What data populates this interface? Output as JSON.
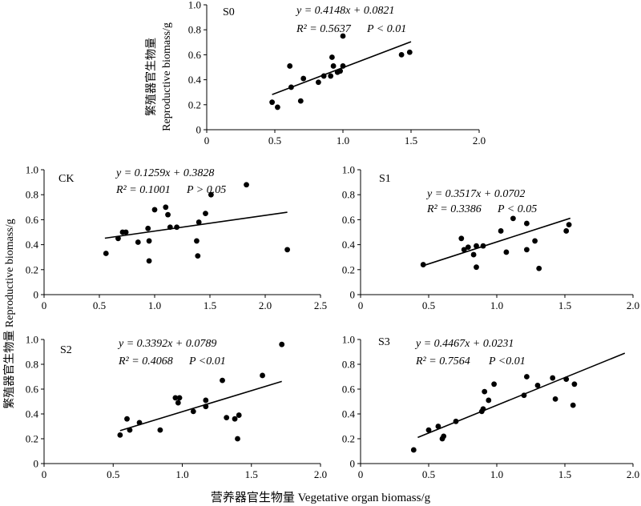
{
  "figure": {
    "ylabel_main": "繁殖器官生物量 Reproductive biomass/g",
    "ylabel_s0_line1": "繁殖器官生物量",
    "ylabel_s0_line2": "Reproductive biomass/g",
    "xlabel": "营养器官生物量 Vegetative organ biomass/g"
  },
  "chart_data": [
    {
      "id": "S0",
      "type": "scatter",
      "label": "S0",
      "equation": "y = 0.4148x + 0.0821",
      "r2": "R² = 0.5637",
      "p": "P < 0.01",
      "slope": 0.4148,
      "intercept": 0.0821,
      "fit_range": [
        0.48,
        1.5
      ],
      "xlim": [
        0,
        2.0
      ],
      "ylim": [
        0,
        1.0
      ],
      "xticks": [
        0,
        0.5,
        1.0,
        1.5,
        2.0
      ],
      "xtick_labels": [
        "0",
        "0.5",
        "1.0",
        "1.5",
        "2.0"
      ],
      "yticks": [
        0,
        0.2,
        0.4,
        0.6,
        0.8,
        1.0
      ],
      "ytick_labels": [
        "0",
        "0.2",
        "0.4",
        "0.6",
        "0.8",
        "1.0"
      ],
      "points": [
        [
          0.48,
          0.22
        ],
        [
          0.52,
          0.18
        ],
        [
          0.61,
          0.51
        ],
        [
          0.62,
          0.34
        ],
        [
          0.69,
          0.23
        ],
        [
          0.71,
          0.41
        ],
        [
          0.82,
          0.38
        ],
        [
          0.86,
          0.43
        ],
        [
          0.91,
          0.43
        ],
        [
          0.92,
          0.58
        ],
        [
          0.93,
          0.51
        ],
        [
          0.96,
          0.46
        ],
        [
          0.98,
          0.47
        ],
        [
          1.0,
          0.51
        ],
        [
          1.0,
          0.75
        ],
        [
          1.43,
          0.6
        ],
        [
          1.49,
          0.62
        ]
      ]
    },
    {
      "id": "CK",
      "type": "scatter",
      "label": "CK",
      "equation": "y = 0.1259x + 0.3828",
      "r2": "R² = 0.1001",
      "p": "P > 0.05",
      "slope": 0.1259,
      "intercept": 0.3828,
      "fit_range": [
        0.55,
        2.2
      ],
      "xlim": [
        0,
        2.5
      ],
      "ylim": [
        0,
        1.0
      ],
      "xticks": [
        0,
        0.5,
        1.0,
        1.5,
        2.0,
        2.5
      ],
      "xtick_labels": [
        "0",
        "0.5",
        "1.0",
        "1.5",
        "2.0",
        "2.5"
      ],
      "yticks": [
        0,
        0.2,
        0.4,
        0.6,
        0.8,
        1.0
      ],
      "ytick_labels": [
        "0",
        "0.2",
        "0.4",
        "0.6",
        "0.8",
        "1.0"
      ],
      "points": [
        [
          0.56,
          0.33
        ],
        [
          0.67,
          0.45
        ],
        [
          0.71,
          0.5
        ],
        [
          0.74,
          0.5
        ],
        [
          0.85,
          0.42
        ],
        [
          0.94,
          0.53
        ],
        [
          0.95,
          0.27
        ],
        [
          0.95,
          0.43
        ],
        [
          1.0,
          0.68
        ],
        [
          1.1,
          0.7
        ],
        [
          1.12,
          0.64
        ],
        [
          1.14,
          0.54
        ],
        [
          1.2,
          0.54
        ],
        [
          1.38,
          0.43
        ],
        [
          1.39,
          0.31
        ],
        [
          1.4,
          0.58
        ],
        [
          1.46,
          0.65
        ],
        [
          1.51,
          0.8
        ],
        [
          1.83,
          0.88
        ],
        [
          2.2,
          0.36
        ]
      ]
    },
    {
      "id": "S1",
      "type": "scatter",
      "label": "S1",
      "equation": "y = 0.3517x + 0.0702",
      "r2": "R² = 0.3386",
      "p": "P < 0.05",
      "slope": 0.3517,
      "intercept": 0.0702,
      "fit_range": [
        0.46,
        1.54
      ],
      "xlim": [
        0,
        2.0
      ],
      "ylim": [
        0,
        1.0
      ],
      "xticks": [
        0,
        0.5,
        1.0,
        1.5,
        2.0
      ],
      "xtick_labels": [
        "0",
        "0.5",
        "1.0",
        "1.5",
        "2.0"
      ],
      "yticks": [
        0,
        0.2,
        0.4,
        0.6,
        0.8,
        1.0
      ],
      "ytick_labels": [
        "0",
        "0.2",
        "0.4",
        "0.6",
        "0.8",
        "1.0"
      ],
      "points": [
        [
          0.46,
          0.24
        ],
        [
          0.74,
          0.45
        ],
        [
          0.76,
          0.36
        ],
        [
          0.79,
          0.38
        ],
        [
          0.83,
          0.32
        ],
        [
          0.85,
          0.22
        ],
        [
          0.85,
          0.39
        ],
        [
          0.9,
          0.39
        ],
        [
          1.03,
          0.51
        ],
        [
          1.07,
          0.34
        ],
        [
          1.12,
          0.61
        ],
        [
          1.22,
          0.57
        ],
        [
          1.22,
          0.36
        ],
        [
          1.28,
          0.43
        ],
        [
          1.31,
          0.21
        ],
        [
          1.51,
          0.51
        ],
        [
          1.53,
          0.56
        ]
      ]
    },
    {
      "id": "S2",
      "type": "scatter",
      "label": "S2",
      "equation": "y = 0.3392x + 0.0789",
      "r2": "R² = 0.4068",
      "p": "P <0.01",
      "slope": 0.3392,
      "intercept": 0.0789,
      "fit_range": [
        0.55,
        1.72
      ],
      "xlim": [
        0,
        2.0
      ],
      "ylim": [
        0,
        1.0
      ],
      "xticks": [
        0,
        0.5,
        1.0,
        1.5,
        2.0
      ],
      "xtick_labels": [
        "0",
        "0.5",
        "1.0",
        "1.5",
        "2.0"
      ],
      "yticks": [
        0,
        0.2,
        0.4,
        0.6,
        0.8,
        1.0
      ],
      "ytick_labels": [
        "0",
        "0.2",
        "0.4",
        "0.6",
        "0.8",
        "1.0"
      ],
      "points": [
        [
          0.55,
          0.23
        ],
        [
          0.6,
          0.36
        ],
        [
          0.62,
          0.27
        ],
        [
          0.69,
          0.33
        ],
        [
          0.84,
          0.27
        ],
        [
          0.95,
          0.53
        ],
        [
          0.97,
          0.49
        ],
        [
          0.98,
          0.53
        ],
        [
          1.08,
          0.42
        ],
        [
          1.17,
          0.46
        ],
        [
          1.17,
          0.51
        ],
        [
          1.29,
          0.67
        ],
        [
          1.32,
          0.37
        ],
        [
          1.38,
          0.36
        ],
        [
          1.4,
          0.2
        ],
        [
          1.41,
          0.39
        ],
        [
          1.58,
          0.71
        ],
        [
          1.72,
          0.96
        ]
      ]
    },
    {
      "id": "S3",
      "type": "scatter",
      "label": "S3",
      "equation": "y = 0.4467x + 0.0231",
      "r2": "R² = 0.7564",
      "p": "P <0.01",
      "slope": 0.4467,
      "intercept": 0.0231,
      "fit_range": [
        0.42,
        1.94
      ],
      "xlim": [
        0,
        2.0
      ],
      "ylim": [
        0,
        1.0
      ],
      "xticks": [
        0,
        0.5,
        1.0,
        1.5,
        2.0
      ],
      "xtick_labels": [
        "0",
        "0.5",
        "1.0",
        "1.5",
        "2.0"
      ],
      "yticks": [
        0,
        0.2,
        0.4,
        0.6,
        0.8,
        1.0
      ],
      "ytick_labels": [
        "0",
        "0.2",
        "0.4",
        "0.6",
        "0.8",
        "1.0"
      ],
      "points": [
        [
          0.39,
          0.11
        ],
        [
          0.5,
          0.27
        ],
        [
          0.57,
          0.3
        ],
        [
          0.6,
          0.2
        ],
        [
          0.61,
          0.22
        ],
        [
          0.7,
          0.34
        ],
        [
          0.89,
          0.42
        ],
        [
          0.9,
          0.44
        ],
        [
          0.91,
          0.58
        ],
        [
          0.94,
          0.51
        ],
        [
          0.98,
          0.64
        ],
        [
          1.2,
          0.55
        ],
        [
          1.22,
          0.7
        ],
        [
          1.3,
          0.63
        ],
        [
          1.41,
          0.69
        ],
        [
          1.43,
          0.52
        ],
        [
          1.51,
          0.68
        ],
        [
          1.56,
          0.47
        ],
        [
          1.57,
          0.64
        ]
      ]
    }
  ]
}
